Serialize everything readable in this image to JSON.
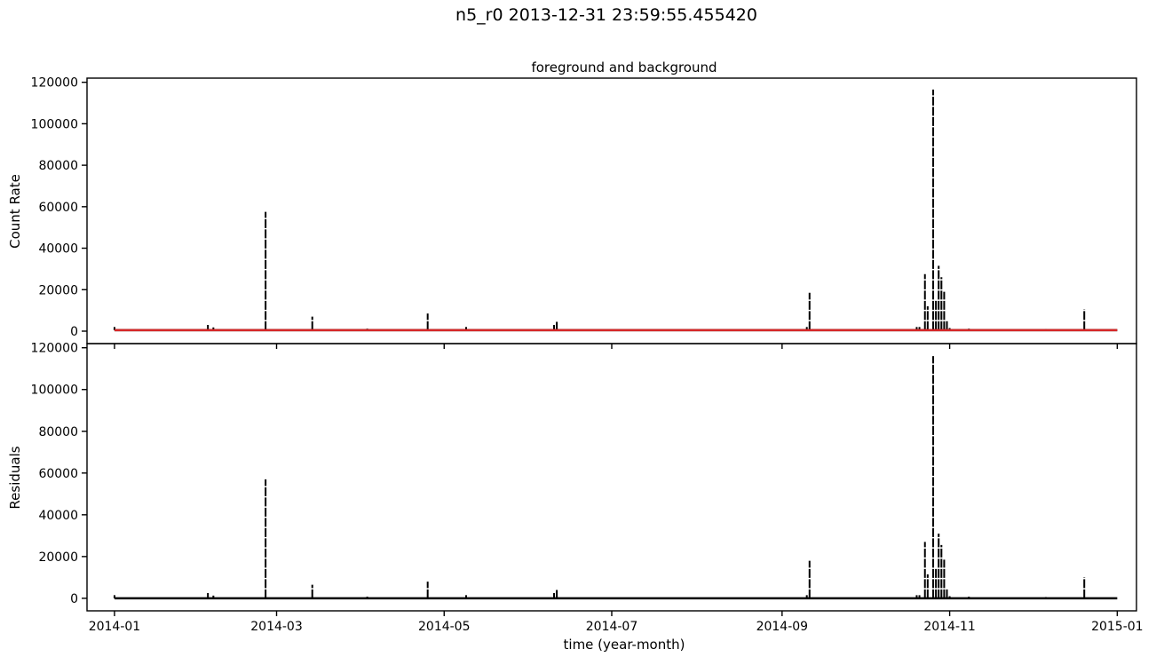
{
  "figure_title": "n5_r0 2013-12-31 23:59:55.455420",
  "chart_data": [
    {
      "type": "scatter",
      "title": "foreground and background",
      "ylabel": "Count Rate",
      "xlabel": "",
      "x_axis": "date",
      "xlim": [
        "2013-12-22",
        "2015-01-08"
      ],
      "ylim": [
        -6000,
        122000
      ],
      "yticks": [
        0,
        20000,
        40000,
        60000,
        80000,
        100000,
        120000
      ],
      "xticks": [
        "2014-01-01",
        "2014-03-01",
        "2014-05-01",
        "2014-07-01",
        "2014-09-01",
        "2014-11-01",
        "2015-01-01"
      ],
      "xtick_labels_shown": false,
      "grid": false,
      "series": [
        {
          "role": "count rate",
          "color": "#000000",
          "baseline": 500,
          "range": [
            "2014-01-01",
            "2015-01-01"
          ],
          "spikes": [
            {
              "x": "2014-01-01",
              "y": 2000
            },
            {
              "x": "2014-02-04",
              "y": 3000
            },
            {
              "x": "2014-02-06",
              "y": 1800
            },
            {
              "x": "2014-02-25",
              "y": 57500
            },
            {
              "x": "2014-03-14",
              "y": 7000
            },
            {
              "x": "2014-04-03",
              "y": 1200
            },
            {
              "x": "2014-04-25",
              "y": 8500
            },
            {
              "x": "2014-05-09",
              "y": 2000
            },
            {
              "x": "2014-06-10",
              "y": 3000
            },
            {
              "x": "2014-06-11",
              "y": 4500
            },
            {
              "x": "2014-09-10",
              "y": 2000
            },
            {
              "x": "2014-09-11",
              "y": 18500
            },
            {
              "x": "2014-10-20",
              "y": 2000
            },
            {
              "x": "2014-10-21",
              "y": 2000
            },
            {
              "x": "2014-10-23",
              "y": 27500
            },
            {
              "x": "2014-10-24",
              "y": 12000
            },
            {
              "x": "2014-10-26",
              "y": 116500
            },
            {
              "x": "2014-10-27",
              "y": 15000
            },
            {
              "x": "2014-10-28",
              "y": 31500
            },
            {
              "x": "2014-10-29",
              "y": 26000
            },
            {
              "x": "2014-10-30",
              "y": 19000
            },
            {
              "x": "2014-10-31",
              "y": 5000
            },
            {
              "x": "2014-11-01",
              "y": 1500
            },
            {
              "x": "2014-11-08",
              "y": 1200
            },
            {
              "x": "2014-12-06",
              "y": 1000
            },
            {
              "x": "2014-12-20",
              "y": 10500
            }
          ]
        },
        {
          "role": "background",
          "color": "#d62728",
          "baseline": 500,
          "range": [
            "2014-01-01",
            "2015-01-01"
          ]
        }
      ]
    },
    {
      "type": "scatter",
      "title": "",
      "ylabel": "Residuals",
      "xlabel": "time (year-month)",
      "x_axis": "date",
      "xlim": [
        "2013-12-22",
        "2015-01-08"
      ],
      "ylim": [
        -6000,
        122000
      ],
      "yticks": [
        0,
        20000,
        40000,
        60000,
        80000,
        100000,
        120000
      ],
      "xticks": [
        "2014-01-01",
        "2014-03-01",
        "2014-05-01",
        "2014-07-01",
        "2014-09-01",
        "2014-11-01",
        "2015-01-01"
      ],
      "xtick_labels": [
        "2014-01",
        "2014-03",
        "2014-05",
        "2014-07",
        "2014-09",
        "2014-11",
        "2015-01"
      ],
      "grid": false,
      "series": [
        {
          "role": "residuals",
          "color": "#000000",
          "baseline": 0,
          "range": [
            "2014-01-01",
            "2015-01-01"
          ],
          "spikes": [
            {
              "x": "2014-01-01",
              "y": 1500
            },
            {
              "x": "2014-02-04",
              "y": 2500
            },
            {
              "x": "2014-02-06",
              "y": 1300
            },
            {
              "x": "2014-02-25",
              "y": 57000
            },
            {
              "x": "2014-03-14",
              "y": 6500
            },
            {
              "x": "2014-04-03",
              "y": 800
            },
            {
              "x": "2014-04-25",
              "y": 8000
            },
            {
              "x": "2014-05-09",
              "y": 1500
            },
            {
              "x": "2014-06-10",
              "y": 2500
            },
            {
              "x": "2014-06-11",
              "y": 4000
            },
            {
              "x": "2014-09-10",
              "y": 1500
            },
            {
              "x": "2014-09-11",
              "y": 18000
            },
            {
              "x": "2014-10-20",
              "y": 1500
            },
            {
              "x": "2014-10-21",
              "y": 1500
            },
            {
              "x": "2014-10-23",
              "y": 27000
            },
            {
              "x": "2014-10-24",
              "y": 11500
            },
            {
              "x": "2014-10-26",
              "y": 116000
            },
            {
              "x": "2014-10-27",
              "y": 14500
            },
            {
              "x": "2014-10-28",
              "y": 31000
            },
            {
              "x": "2014-10-29",
              "y": 25500
            },
            {
              "x": "2014-10-30",
              "y": 18500
            },
            {
              "x": "2014-10-31",
              "y": 4500
            },
            {
              "x": "2014-11-01",
              "y": 1000
            },
            {
              "x": "2014-11-08",
              "y": 800
            },
            {
              "x": "2014-12-06",
              "y": 600
            },
            {
              "x": "2014-12-20",
              "y": 10000
            }
          ]
        }
      ]
    }
  ]
}
